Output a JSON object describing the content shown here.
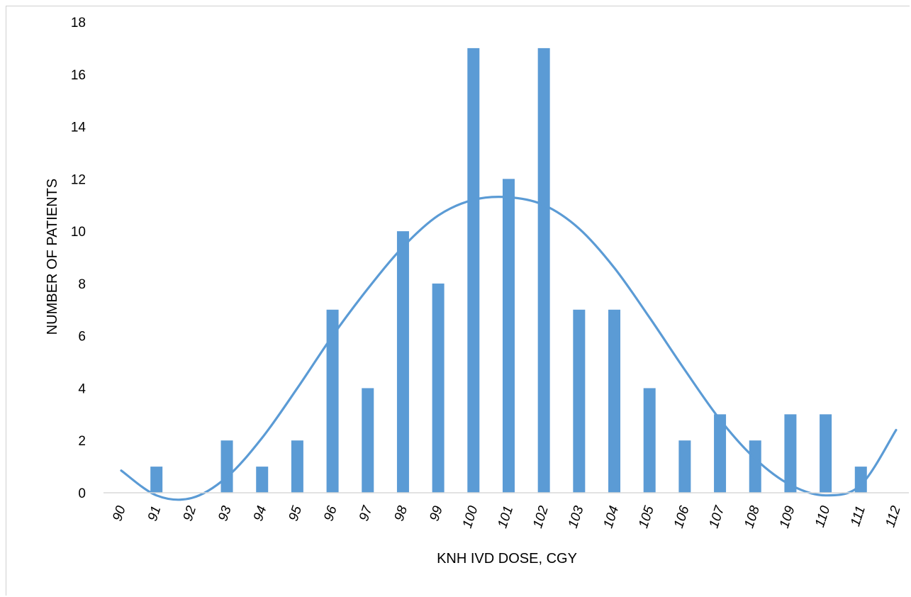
{
  "chart_data": {
    "type": "bar",
    "title": "",
    "xlabel": "KNH IVD DOSE, CGY",
    "ylabel": "NUMBER OF PATIENTS",
    "categories": [
      "90",
      "91",
      "92",
      "93",
      "94",
      "95",
      "96",
      "97",
      "98",
      "99",
      "100",
      "101",
      "102",
      "103",
      "104",
      "105",
      "106",
      "107",
      "108",
      "109",
      "110",
      "111",
      "112"
    ],
    "series": [
      {
        "values": [
          0,
          1,
          0,
          2,
          1,
          2,
          7,
          4,
          10,
          8,
          17,
          12,
          17,
          7,
          7,
          4,
          2,
          3,
          2,
          3,
          3,
          1,
          0
        ]
      }
    ],
    "trendline": {
      "type": "polynomial",
      "points": [
        {
          "x": 90,
          "y": 0.85
        },
        {
          "x": 91,
          "y": -0.1
        },
        {
          "x": 92,
          "y": -0.2
        },
        {
          "x": 93,
          "y": 0.6
        },
        {
          "x": 94,
          "y": 2.1
        },
        {
          "x": 95,
          "y": 4.0
        },
        {
          "x": 96,
          "y": 6.0
        },
        {
          "x": 97,
          "y": 7.8
        },
        {
          "x": 98,
          "y": 9.4
        },
        {
          "x": 99,
          "y": 10.6
        },
        {
          "x": 100,
          "y": 11.2
        },
        {
          "x": 101,
          "y": 11.3
        },
        {
          "x": 102,
          "y": 11.0
        },
        {
          "x": 103,
          "y": 10.1
        },
        {
          "x": 104,
          "y": 8.6
        },
        {
          "x": 105,
          "y": 6.7
        },
        {
          "x": 106,
          "y": 4.7
        },
        {
          "x": 107,
          "y": 2.8
        },
        {
          "x": 108,
          "y": 1.3
        },
        {
          "x": 109,
          "y": 0.3
        },
        {
          "x": 110,
          "y": -0.1
        },
        {
          "x": 111,
          "y": 0.3
        },
        {
          "x": 112,
          "y": 2.4
        }
      ]
    },
    "ylim": [
      0,
      18
    ],
    "yticks": [
      0,
      2,
      4,
      6,
      8,
      10,
      12,
      14,
      16,
      18
    ],
    "grid": false,
    "colors": {
      "bar": "#5b9bd5",
      "trend": "#5b9bd5",
      "axis": "#d9d9d9"
    }
  }
}
